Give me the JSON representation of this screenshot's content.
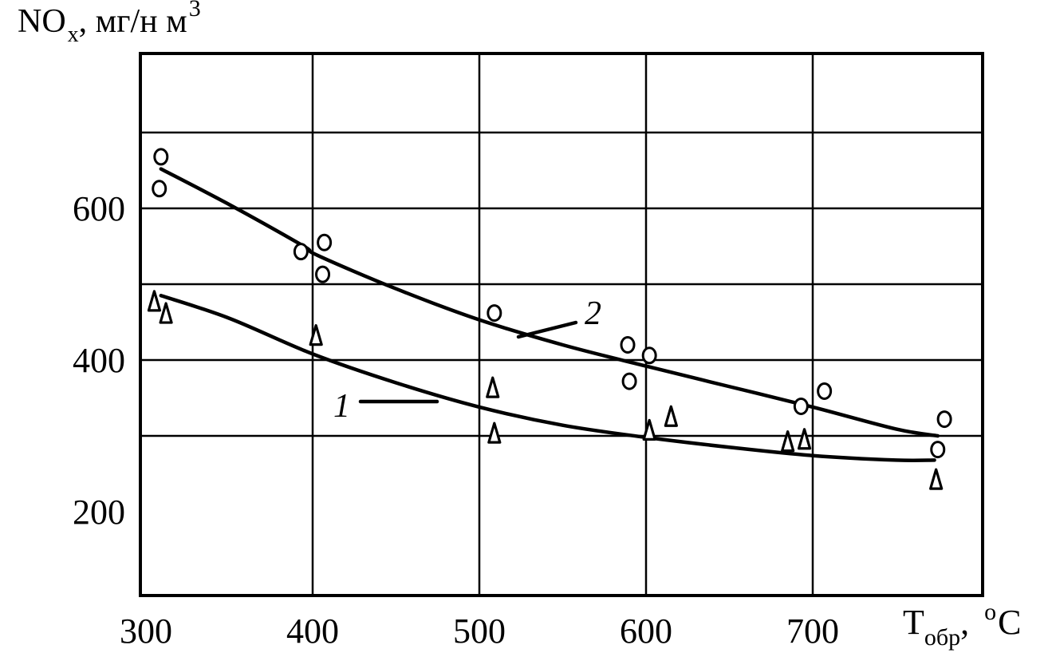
{
  "chart_data": {
    "type": "scatter",
    "xlabel": {
      "main": "T",
      "sub": "обр",
      "tail": ", ",
      "sup": "o",
      "unit": "C"
    },
    "ylabel": {
      "main": "NO",
      "sub": "x",
      "tail": ", мг/н м",
      "sup": "3"
    },
    "xlim": [
      300,
      775
    ],
    "ylim": [
      90,
      790
    ],
    "x_ticks": [
      300,
      400,
      500,
      600,
      700
    ],
    "y_ticks": [
      200,
      400,
      600
    ],
    "x_gridlines": [
      400,
      500,
      600,
      700
    ],
    "y_gridlines": [
      300,
      400,
      500,
      600,
      700
    ],
    "grid": true,
    "series": [
      {
        "name": "1",
        "marker": "triangle",
        "points": [
          [
            305,
            477
          ],
          [
            312,
            461
          ],
          [
            402,
            432
          ],
          [
            508,
            363
          ],
          [
            509,
            303
          ],
          [
            602,
            307
          ],
          [
            615,
            325
          ],
          [
            685,
            292
          ],
          [
            695,
            295
          ],
          [
            774,
            242
          ]
        ],
        "curve": [
          [
            309,
            485
          ],
          [
            350,
            455
          ],
          [
            400,
            408
          ],
          [
            450,
            370
          ],
          [
            500,
            338
          ],
          [
            550,
            314
          ],
          [
            600,
            298
          ],
          [
            650,
            285
          ],
          [
            700,
            274
          ],
          [
            750,
            268
          ],
          [
            773,
            268
          ]
        ]
      },
      {
        "name": "2",
        "marker": "circle",
        "points": [
          [
            309,
            668
          ],
          [
            308,
            626
          ],
          [
            393,
            543
          ],
          [
            407,
            555
          ],
          [
            406,
            513
          ],
          [
            509,
            462
          ],
          [
            589,
            420
          ],
          [
            590,
            372
          ],
          [
            602,
            406
          ],
          [
            693,
            339
          ],
          [
            707,
            359
          ],
          [
            779,
            322
          ],
          [
            775,
            282
          ]
        ],
        "curve": [
          [
            309,
            652
          ],
          [
            350,
            605
          ],
          [
            394,
            551
          ],
          [
            403,
            538
          ],
          [
            450,
            494
          ],
          [
            500,
            453
          ],
          [
            550,
            420
          ],
          [
            600,
            392
          ],
          [
            650,
            365
          ],
          [
            700,
            338
          ],
          [
            750,
            309
          ],
          [
            775,
            300
          ]
        ]
      }
    ]
  }
}
